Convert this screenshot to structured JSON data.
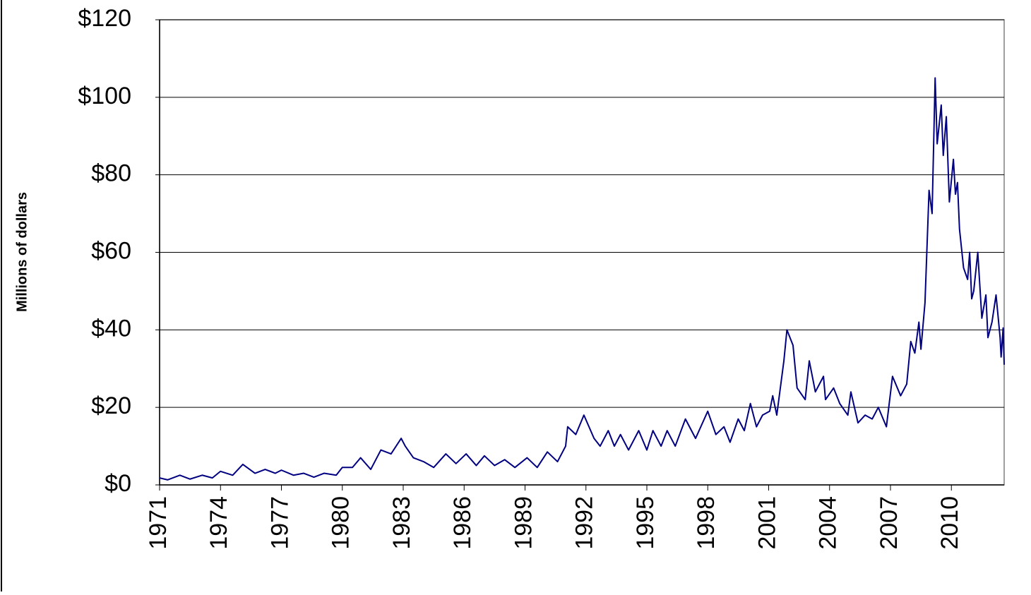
{
  "chart_data": {
    "type": "line",
    "ylabel": "Millions of dollars",
    "color": "#000080",
    "grid": true,
    "xlim": [
      1971,
      2012.6
    ],
    "xticks": [
      1971,
      1974,
      1977,
      1980,
      1983,
      1986,
      1989,
      1992,
      1995,
      1998,
      2001,
      2004,
      2007,
      2010
    ],
    "ylim": [
      0,
      120
    ],
    "yticks": [
      {
        "value": 0,
        "label": "$0"
      },
      {
        "value": 20,
        "label": "$20"
      },
      {
        "value": 40,
        "label": "$40"
      },
      {
        "value": 60,
        "label": "$60"
      },
      {
        "value": 80,
        "label": "$80"
      },
      {
        "value": 100,
        "label": "$100"
      },
      {
        "value": 120,
        "label": "$120"
      }
    ],
    "x": [
      1971.0,
      1971.4,
      1972.0,
      1972.5,
      1973.1,
      1973.6,
      1974.0,
      1974.6,
      1975.1,
      1975.7,
      1976.2,
      1976.7,
      1977.0,
      1977.6,
      1978.1,
      1978.6,
      1979.1,
      1979.7,
      1980.0,
      1980.5,
      1980.9,
      1981.4,
      1981.9,
      1982.4,
      1982.9,
      1983.1,
      1983.5,
      1984.0,
      1984.5,
      1985.1,
      1985.6,
      1986.1,
      1986.6,
      1987.0,
      1987.5,
      1988.0,
      1988.5,
      1989.1,
      1989.6,
      1990.1,
      1990.6,
      1991.0,
      1991.1,
      1991.5,
      1991.9,
      1992.4,
      1992.7,
      1993.1,
      1993.4,
      1993.7,
      1994.1,
      1994.6,
      1995.0,
      1995.3,
      1995.7,
      1996.0,
      1996.4,
      1996.9,
      1997.4,
      1998.0,
      1998.4,
      1998.8,
      1999.1,
      1999.5,
      1999.8,
      2000.1,
      2000.4,
      2000.7,
      2001.05,
      2001.2,
      2001.4,
      2001.75,
      2001.9,
      2002.2,
      2002.4,
      2002.8,
      2003.0,
      2003.3,
      2003.7,
      2003.8,
      2004.2,
      2004.5,
      2004.9,
      2005.05,
      2005.4,
      2005.75,
      2006.1,
      2006.4,
      2006.8,
      2007.1,
      2007.5,
      2007.8,
      2008.0,
      2008.2,
      2008.4,
      2008.5,
      2008.7,
      2008.9,
      2009.05,
      2009.2,
      2009.3,
      2009.5,
      2009.6,
      2009.75,
      2009.9,
      2010.1,
      2010.2,
      2010.3,
      2010.4,
      2010.6,
      2010.8,
      2010.9,
      2011.0,
      2011.1,
      2011.3,
      2011.5,
      2011.7,
      2011.8,
      2012.0,
      2012.2,
      2012.4,
      2012.45,
      2012.55,
      2012.6
    ],
    "values": [
      1.8,
      1.3,
      2.5,
      1.5,
      2.5,
      1.8,
      3.5,
      2.5,
      5.3,
      3.0,
      4.0,
      3.0,
      3.8,
      2.5,
      3.0,
      2.0,
      3.0,
      2.5,
      4.5,
      4.5,
      7.0,
      4.0,
      9.0,
      8.0,
      12.0,
      10.0,
      7.0,
      6.0,
      4.5,
      8.0,
      5.5,
      8.0,
      5.0,
      7.5,
      5.0,
      6.5,
      4.5,
      7.0,
      4.5,
      8.5,
      6.0,
      10.0,
      15.0,
      13.0,
      18.0,
      12.0,
      10.0,
      14.0,
      10.0,
      13.0,
      9.0,
      14.0,
      9.0,
      14.0,
      10.0,
      14.0,
      10.0,
      17.0,
      12.0,
      19.0,
      13.0,
      15.0,
      11.0,
      17.0,
      14.0,
      21.0,
      15.0,
      18.0,
      19.0,
      23.0,
      18.0,
      32.0,
      40.0,
      36.0,
      25.0,
      22.0,
      32.0,
      24.0,
      28.0,
      22.0,
      25.0,
      21.0,
      18.0,
      24.0,
      16.0,
      18.0,
      17.0,
      20.0,
      15.0,
      28.0,
      23.0,
      26.0,
      37.0,
      34.0,
      42.0,
      35.0,
      47.0,
      76.0,
      70.0,
      105.0,
      88.0,
      98.0,
      85.0,
      95.0,
      73.0,
      84.0,
      75.0,
      78.0,
      66.0,
      56.0,
      53.0,
      60.0,
      48.0,
      50.0,
      60.0,
      43.0,
      49.0,
      38.0,
      42.0,
      49.0,
      38.0,
      33.0,
      40.5,
      31.0
    ]
  }
}
